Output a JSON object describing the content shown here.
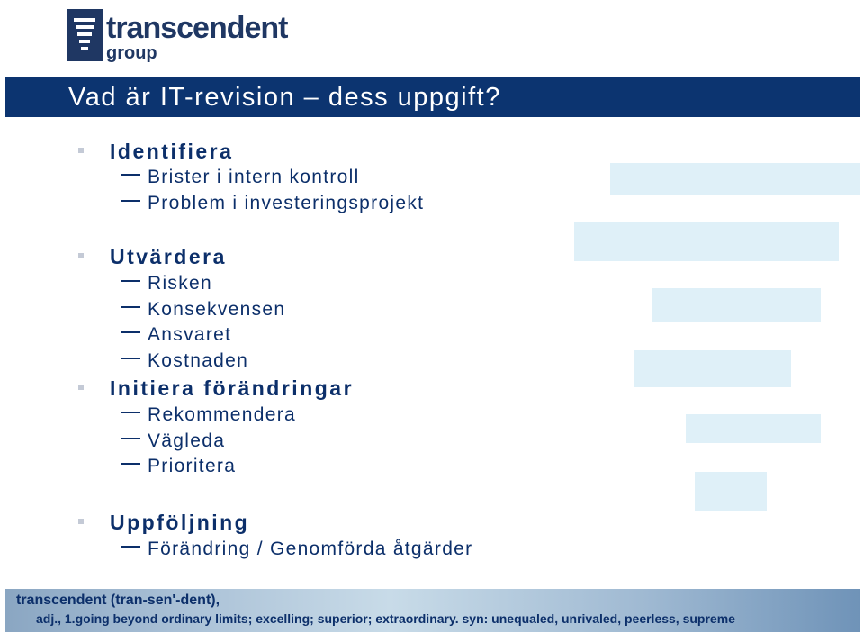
{
  "logo": {
    "name": "transcendent",
    "sub": "group"
  },
  "slide": {
    "title": "Vad är IT-revision – dess uppgift?"
  },
  "sections": [
    {
      "heading": "Identifiera",
      "items": [
        "Brister i intern kontroll",
        "Problem i investeringsprojekt"
      ]
    },
    {
      "heading": "Utvärdera",
      "items": [
        "Risken",
        "Konsekvensen",
        "Ansvaret",
        "Kostnaden"
      ]
    },
    {
      "heading": "Initiera förändringar",
      "items": [
        "Rekommendera",
        "Vägleda",
        "Prioritera"
      ]
    },
    {
      "heading": "Uppföljning",
      "items": [
        "Förändring / Genomförda åtgärder"
      ]
    }
  ],
  "footer": {
    "line1": "transcendent (tran-sen'-dent),",
    "line2": "adj., 1.going beyond ordinary limits; excelling; superior; extraordinary.   syn: unequaled, unrivaled, peerless, supreme"
  },
  "colors": {
    "title_bar": "#0c3470",
    "text": "#0c2f6a",
    "boxes": "#dff0f8"
  }
}
